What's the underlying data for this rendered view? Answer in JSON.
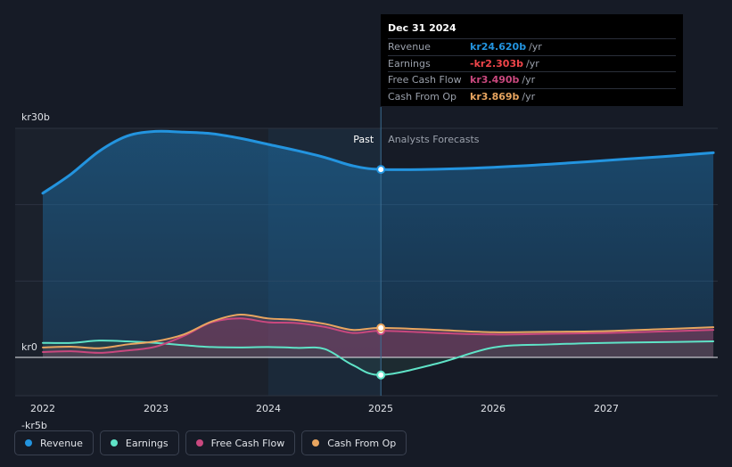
{
  "chart_data": {
    "type": "line",
    "title": "",
    "y_axis_labels": [
      "kr30b",
      "kr0",
      "-kr5b"
    ],
    "ylim": [
      -5,
      30
    ],
    "x_ticks": [
      "2022",
      "2023",
      "2024",
      "2025",
      "2026",
      "2027"
    ],
    "xlim": [
      2021.75,
      2027.95
    ],
    "divider_x": 2025.0,
    "past_label": "Past",
    "forecast_label": "Analysts Forecasts",
    "series": [
      {
        "name": "Revenue",
        "color": "#2394df",
        "x": [
          2022.0,
          2022.25,
          2022.5,
          2022.75,
          2023.0,
          2023.25,
          2023.5,
          2023.75,
          2024.0,
          2024.25,
          2024.5,
          2024.75,
          2025.0,
          2025.5,
          2026.0,
          2026.5,
          2027.0,
          2027.5,
          2027.95
        ],
        "values": [
          21.5,
          24.0,
          27.0,
          29.0,
          29.6,
          29.5,
          29.3,
          28.7,
          27.9,
          27.1,
          26.2,
          25.1,
          24.62,
          24.65,
          24.9,
          25.3,
          25.8,
          26.3,
          26.8
        ]
      },
      {
        "name": "Earnings",
        "color": "#5fe3c7",
        "x": [
          2022.0,
          2022.25,
          2022.5,
          2022.75,
          2023.0,
          2023.25,
          2023.5,
          2023.75,
          2024.0,
          2024.25,
          2024.5,
          2024.75,
          2025.0,
          2025.5,
          2026.0,
          2026.5,
          2027.0,
          2027.5,
          2027.95
        ],
        "values": [
          1.9,
          1.9,
          2.2,
          2.1,
          1.9,
          1.6,
          1.35,
          1.3,
          1.35,
          1.25,
          1.1,
          -1.0,
          -2.303,
          -0.8,
          1.3,
          1.7,
          1.9,
          2.0,
          2.1
        ]
      },
      {
        "name": "Free Cash Flow",
        "color": "#c9487e",
        "x": [
          2022.0,
          2022.25,
          2022.5,
          2022.75,
          2023.0,
          2023.25,
          2023.5,
          2023.75,
          2024.0,
          2024.25,
          2024.5,
          2024.75,
          2025.0,
          2025.5,
          2026.0,
          2026.5,
          2027.0,
          2027.5,
          2027.95
        ],
        "values": [
          0.7,
          0.8,
          0.6,
          0.9,
          1.4,
          2.8,
          4.6,
          5.1,
          4.6,
          4.5,
          4.0,
          3.2,
          3.49,
          3.2,
          3.0,
          3.1,
          3.2,
          3.4,
          3.6
        ]
      },
      {
        "name": "Cash From Op",
        "color": "#e8a560",
        "x": [
          2022.0,
          2022.25,
          2022.5,
          2022.75,
          2023.0,
          2023.25,
          2023.5,
          2023.75,
          2024.0,
          2024.25,
          2024.5,
          2024.75,
          2025.0,
          2025.5,
          2026.0,
          2026.5,
          2027.0,
          2027.5,
          2027.95
        ],
        "values": [
          1.3,
          1.4,
          1.2,
          1.7,
          2.1,
          3.0,
          4.7,
          5.6,
          5.1,
          4.9,
          4.4,
          3.6,
          3.869,
          3.6,
          3.3,
          3.35,
          3.45,
          3.7,
          3.95
        ]
      }
    ],
    "tooltip": {
      "date": "Dec 31 2024",
      "unit": "/yr",
      "rows": [
        {
          "label": "Revenue",
          "value": "kr24.620b",
          "color": "#2394df"
        },
        {
          "label": "Earnings",
          "value": "-kr2.303b",
          "color": "#f0454a"
        },
        {
          "label": "Free Cash Flow",
          "value": "kr3.490b",
          "color": "#c9487e"
        },
        {
          "label": "Cash From Op",
          "value": "kr3.869b",
          "color": "#e8a560"
        }
      ]
    },
    "legend": [
      {
        "label": "Revenue",
        "color": "#2394df"
      },
      {
        "label": "Earnings",
        "color": "#5fe3c7"
      },
      {
        "label": "Free Cash Flow",
        "color": "#c9487e"
      },
      {
        "label": "Cash From Op",
        "color": "#e8a560"
      }
    ]
  }
}
